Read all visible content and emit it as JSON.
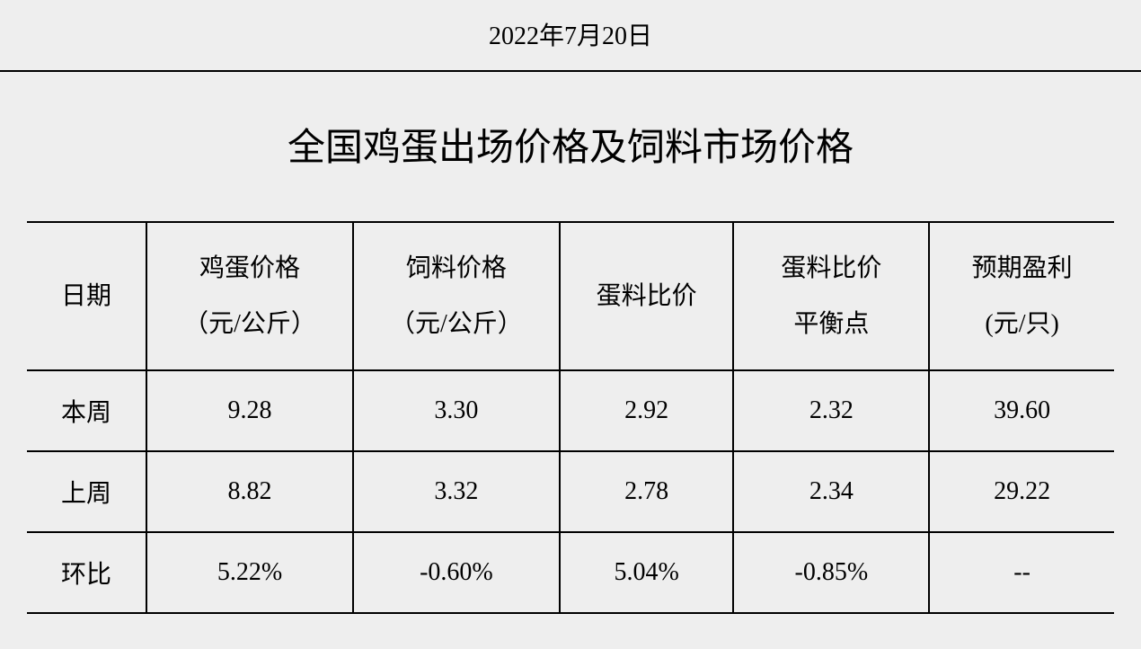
{
  "date": "2022年7月20日",
  "title": "全国鸡蛋出场价格及饲料市场价格",
  "table": {
    "columns": [
      {
        "key": "date",
        "line1": "日期",
        "line2": ""
      },
      {
        "key": "egg_price",
        "line1": "鸡蛋价格",
        "line2": "（元/公斤）"
      },
      {
        "key": "feed_price",
        "line1": "饲料价格",
        "line2": "（元/公斤）"
      },
      {
        "key": "ratio",
        "line1": "蛋料比价",
        "line2": ""
      },
      {
        "key": "balance",
        "line1": "蛋料比价",
        "line2": "平衡点"
      },
      {
        "key": "profit",
        "line1": "预期盈利",
        "line2": "(元/只)"
      }
    ],
    "rows": [
      {
        "label": "本周",
        "egg_price": "9.28",
        "feed_price": "3.30",
        "ratio": "2.92",
        "balance": "2.32",
        "profit": "39.60"
      },
      {
        "label": "上周",
        "egg_price": "8.82",
        "feed_price": "3.32",
        "ratio": "2.78",
        "balance": "2.34",
        "profit": "29.22"
      },
      {
        "label": "环比",
        "egg_price": "5.22%",
        "feed_price": "-0.60%",
        "ratio": "5.04%",
        "balance": "-0.85%",
        "profit": "--"
      }
    ],
    "styling": {
      "background_color": "#eeeeee",
      "text_color": "#000000",
      "border_color": "#000000",
      "border_width": 2,
      "date_fontsize": 28,
      "title_fontsize": 42,
      "header_fontsize": 28,
      "cell_fontsize": 28,
      "font_family": "SimSun"
    }
  }
}
